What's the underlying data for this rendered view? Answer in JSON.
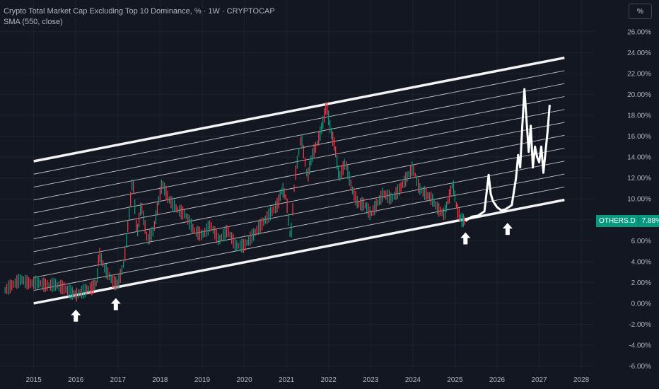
{
  "legend": {
    "title": "Crypto Total Market Cap Excluding Top 10 Dominance, % · 1W · CRYPTOCAP",
    "indicator": "SMA (550, close)"
  },
  "unit_button": "%",
  "price_badge": {
    "symbol": "OTHERS.D",
    "value": "7.88%"
  },
  "colors": {
    "background": "#131722",
    "grid": "#1e222d",
    "axis_text": "#b2b5be",
    "up": "#089981",
    "down": "#f23645",
    "channel": "#ffffff",
    "badge": "#089981"
  },
  "chart_data": {
    "type": "line",
    "y_axis_unit": "%",
    "y_ticks": [
      -6,
      -4,
      -2,
      0,
      2,
      4,
      6,
      8,
      10,
      12,
      14,
      16,
      18,
      20,
      22,
      24,
      26
    ],
    "y_tick_labels": [
      "-6.00%",
      "-4.00%",
      "-2.00%",
      "0.00%",
      "2.00%",
      "4.00%",
      "6.00%",
      "8.00%",
      "10.00%",
      "12.00%",
      "14.00%",
      "16.00%",
      "18.00%",
      "20.00%",
      "22.00%",
      "24.00%",
      "26.00%"
    ],
    "ylim": [
      -6.3,
      27
    ],
    "x_ticks": [
      "2015",
      "2016",
      "2017",
      "2018",
      "2019",
      "2020",
      "2021",
      "2022",
      "2023",
      "2024",
      "2025",
      "2026",
      "2027",
      "2028"
    ],
    "xlim": [
      2014.2,
      2028.3
    ],
    "grid": true,
    "current_value": 7.88,
    "price_series": {
      "x": [
        2014.3,
        2014.5,
        2014.7,
        2014.9,
        2015.1,
        2015.3,
        2015.5,
        2015.7,
        2015.9,
        2016.0,
        2016.2,
        2016.4,
        2016.5,
        2016.55,
        2016.7,
        2016.9,
        2017.0,
        2017.15,
        2017.25,
        2017.35,
        2017.45,
        2017.55,
        2017.7,
        2017.85,
        2017.95,
        2018.05,
        2018.2,
        2018.4,
        2018.6,
        2018.8,
        2019.0,
        2019.2,
        2019.4,
        2019.6,
        2019.8,
        2020.0,
        2020.2,
        2020.4,
        2020.6,
        2020.8,
        2020.9,
        2021.0,
        2021.1,
        2021.2,
        2021.35,
        2021.5,
        2021.6,
        2021.75,
        2021.85,
        2021.95,
        2022.05,
        2022.15,
        2022.25,
        2022.4,
        2022.55,
        2022.7,
        2022.85,
        2023.0,
        2023.15,
        2023.3,
        2023.5,
        2023.7,
        2023.85,
        2024.0,
        2024.15,
        2024.3,
        2024.45,
        2024.6,
        2024.75,
        2024.85,
        2024.95,
        2025.05,
        2025.15,
        2025.25
      ],
      "y": [
        1.2,
        1.8,
        2.3,
        1.9,
        2.0,
        1.7,
        1.8,
        1.5,
        1.0,
        0.8,
        1.2,
        1.5,
        2.0,
        4.8,
        3.2,
        2.0,
        1.8,
        4.0,
        8.0,
        12.0,
        6.5,
        9.5,
        6.0,
        7.0,
        9.5,
        11.5,
        10.0,
        9.0,
        8.5,
        7.0,
        6.5,
        7.5,
        6.0,
        7.0,
        5.5,
        5.5,
        6.5,
        7.5,
        8.5,
        9.5,
        11.0,
        10.0,
        6.0,
        12.0,
        16.0,
        12.0,
        14.0,
        15.5,
        17.0,
        19.0,
        16.5,
        15.0,
        12.0,
        13.5,
        11.0,
        9.5,
        9.5,
        8.5,
        9.5,
        10.5,
        10.0,
        11.0,
        12.0,
        13.0,
        11.0,
        10.5,
        10.0,
        9.0,
        8.5,
        10.0,
        11.5,
        9.0,
        8.0,
        7.88
      ]
    },
    "projection_series": {
      "x": [
        2025.25,
        2025.4,
        2025.55,
        2025.7,
        2025.8,
        2025.85,
        2025.9,
        2026.0,
        2026.1,
        2026.2,
        2026.35,
        2026.45,
        2026.5,
        2026.55,
        2026.6,
        2026.65,
        2026.75,
        2026.8,
        2026.85,
        2026.9,
        2026.95,
        2027.0,
        2027.05,
        2027.1,
        2027.15,
        2027.2,
        2027.25
      ],
      "y": [
        7.88,
        8.3,
        8.4,
        8.8,
        12.3,
        10.5,
        9.8,
        9.2,
        8.9,
        9.0,
        9.4,
        12.0,
        14.2,
        13.0,
        17.0,
        20.5,
        14.5,
        17.0,
        13.0,
        15.0,
        14.0,
        13.5,
        15.0,
        12.5,
        14.5,
        16.5,
        19.0
      ]
    },
    "channel": {
      "start_x": 2015.0,
      "end_x": 2027.6,
      "lower_start": 0.0,
      "lower_end": 9.9,
      "upper_start": 13.6,
      "upper_end": 23.5,
      "inner_lines": 10
    },
    "annotations": [
      {
        "type": "arrow-up",
        "x": 2016.0,
        "y": -0.6
      },
      {
        "type": "arrow-up",
        "x": 2016.95,
        "y": 0.5
      },
      {
        "type": "arrow-up",
        "x": 2025.25,
        "y": 6.8
      },
      {
        "type": "arrow-up",
        "x": 2026.25,
        "y": 7.7
      }
    ]
  }
}
